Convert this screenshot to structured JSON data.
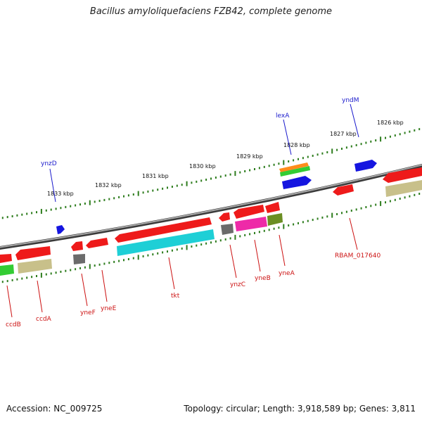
{
  "title": "Bacillus amyloliquefaciens FZB42, complete genome",
  "footer": {
    "accession": "Accession: NC_009725",
    "topology": "Topology: circular; Length: 3,918,589 bp; Genes: 3,811"
  },
  "scale_labels": [
    "1833 kbp",
    "1832 kbp",
    "1831 kbp",
    "1830 kbp",
    "1829 kbp",
    "1828 kbp",
    "1827 kbp",
    "1826 kbp"
  ],
  "genes_top": [
    "ynzD",
    "lexA",
    "yndM"
  ],
  "genes_bottom": [
    "ccdB",
    "ccdA",
    "yneF",
    "yneE",
    "tkt",
    "ynzC",
    "yneB",
    "yneA",
    "RBAM_017640"
  ],
  "colors": {
    "backbone": "#777777",
    "tick": "#2e7d1e",
    "forward_gene": "#1515e0",
    "reverse_gene": "#ee1a1a",
    "top_label": "#1a1acc",
    "bottom_label": "#cc1111",
    "cog_cyan": "#1ecfd6",
    "cog_green": "#33cc33",
    "cog_khaki": "#c8c08a",
    "cog_gray": "#6b6b6b",
    "cog_magenta": "#ee2aa8",
    "cog_olive": "#6b8e23",
    "cog_orange": "#ff8c1a"
  }
}
